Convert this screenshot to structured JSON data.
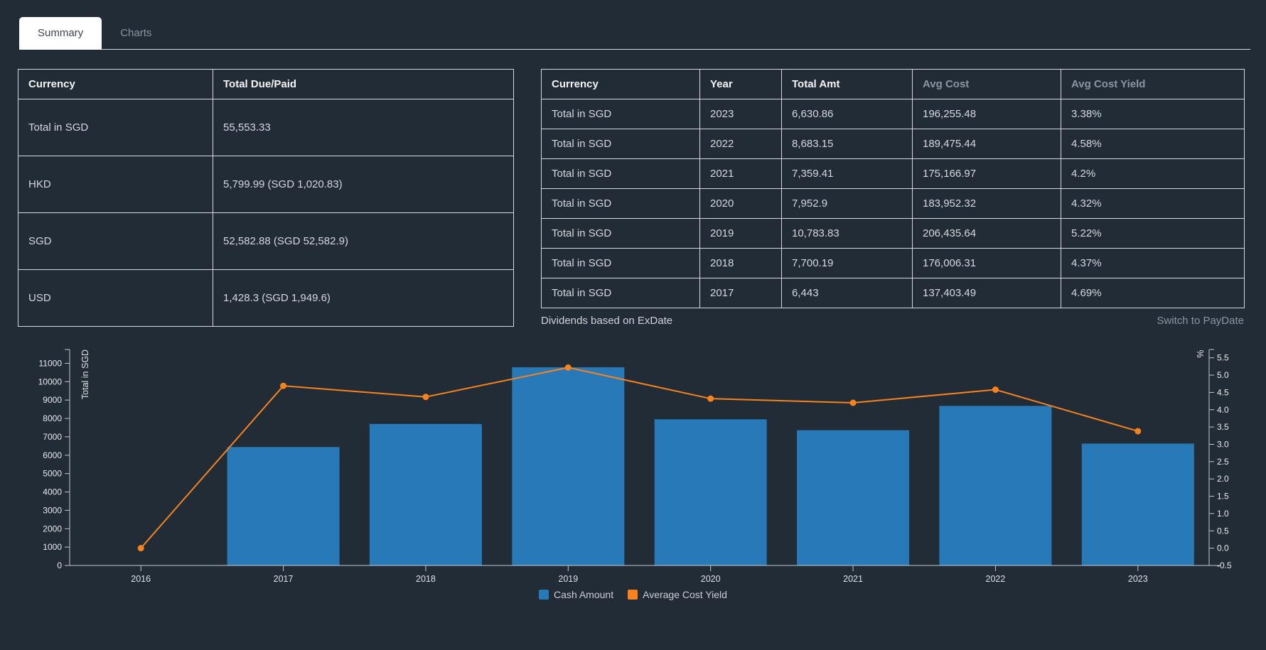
{
  "tabs": [
    {
      "label": "Summary",
      "active": true
    },
    {
      "label": "Charts",
      "active": false
    }
  ],
  "summary_table": {
    "headers": [
      "Currency",
      "Total Due/Paid"
    ],
    "header_muted": [
      false,
      false
    ],
    "rows": [
      [
        "Total in SGD",
        "55,553.33"
      ],
      [
        "HKD",
        "5,799.99 (SGD 1,020.83)"
      ],
      [
        "SGD",
        "52,582.88 (SGD 52,582.9)"
      ],
      [
        "USD",
        "1,428.3 (SGD 1,949.6)"
      ]
    ]
  },
  "yearly_table": {
    "headers": [
      "Currency",
      "Year",
      "Total Amt",
      "Avg Cost",
      "Avg Cost Yield"
    ],
    "header_muted": [
      false,
      false,
      false,
      true,
      true
    ],
    "rows": [
      [
        "Total in SGD",
        "2023",
        "6,630.86",
        "196,255.48",
        "3.38%"
      ],
      [
        "Total in SGD",
        "2022",
        "8,683.15",
        "189,475.44",
        "4.58%"
      ],
      [
        "Total in SGD",
        "2021",
        "7,359.41",
        "175,166.97",
        "4.2%"
      ],
      [
        "Total in SGD",
        "2020",
        "7,952.9",
        "183,952.32",
        "4.32%"
      ],
      [
        "Total in SGD",
        "2019",
        "10,783.83",
        "206,435.64",
        "5.22%"
      ],
      [
        "Total in SGD",
        "2018",
        "7,700.19",
        "176,006.31",
        "4.37%"
      ],
      [
        "Total in SGD",
        "2017",
        "6,443",
        "137,403.49",
        "4.69%"
      ]
    ]
  },
  "footnote": "Dividends based on ExDate",
  "switch_link": "Switch to PayDate",
  "colors": {
    "background": "#222c37",
    "border": "#d6dade",
    "bar": "#2879b8",
    "line": "#f8831d",
    "muted_text": "#8b95a2"
  },
  "chart_data": {
    "type": "bar+line",
    "categories": [
      "2016",
      "2017",
      "2018",
      "2019",
      "2020",
      "2021",
      "2022",
      "2023"
    ],
    "series": [
      {
        "name": "Cash Amount",
        "type": "bar",
        "axis": "left",
        "color": "#2879b8",
        "values": [
          null,
          6443,
          7700.19,
          10783.83,
          7952.9,
          7359.41,
          8683.15,
          6630.86
        ]
      },
      {
        "name": "Average Cost Yield",
        "type": "line",
        "axis": "right",
        "color": "#f8831d",
        "values": [
          0.0,
          4.69,
          4.37,
          5.22,
          4.32,
          4.2,
          4.58,
          3.38
        ]
      }
    ],
    "y_left": {
      "name": "Total in SGD",
      "ticks": [
        0,
        1000,
        2000,
        3000,
        4000,
        5000,
        6000,
        7000,
        8000,
        9000,
        10000,
        11000
      ],
      "max": 11751
    },
    "y_right": {
      "name": "%",
      "ticks": [
        -0.5,
        0.0,
        0.5,
        1.0,
        1.5,
        2.0,
        2.5,
        3.0,
        3.5,
        4.0,
        4.5,
        5.0,
        5.5
      ],
      "min": -0.5,
      "max": 5.74
    },
    "grid": false,
    "legend": [
      "Cash Amount",
      "Average Cost Yield"
    ],
    "legend_position": "bottom"
  }
}
